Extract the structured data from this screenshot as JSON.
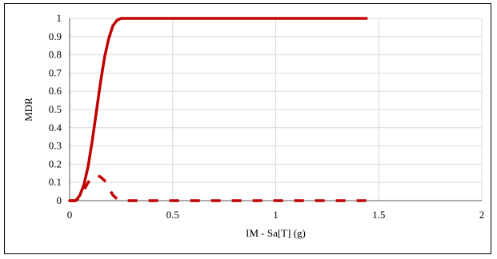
{
  "chart_data": {
    "type": "line",
    "title": "",
    "xlabel": "IM - Sa[T] (g)",
    "ylabel": "MDR",
    "xlim": [
      0,
      2
    ],
    "ylim": [
      0,
      1
    ],
    "xticks": [
      0,
      0.5,
      1,
      1.5,
      2
    ],
    "xtick_labels": [
      "0",
      "0.5",
      "1",
      "1.5",
      "2"
    ],
    "yticks": [
      0,
      0.1,
      0.2,
      0.3,
      0.4,
      0.5,
      0.6,
      0.7,
      0.8,
      0.9,
      1
    ],
    "ytick_labels": [
      "0",
      "0.1",
      "0.2",
      "0.3",
      "0.4",
      "0.5",
      "0.6",
      "0.7",
      "0.8",
      "0.9",
      "1"
    ],
    "grid": true,
    "legend": "none",
    "series": [
      {
        "style": "solid",
        "color": "#c00000",
        "x": [
          0,
          0.03,
          0.05,
          0.07,
          0.09,
          0.11,
          0.13,
          0.15,
          0.17,
          0.19,
          0.21,
          0.23,
          0.25,
          0.27,
          0.3,
          0.5,
          1.0,
          1.44
        ],
        "y": [
          0,
          0.0,
          0.03,
          0.09,
          0.19,
          0.33,
          0.49,
          0.65,
          0.79,
          0.89,
          0.96,
          0.99,
          1.0,
          1.0,
          1.0,
          1.0,
          1.0,
          1.0
        ]
      },
      {
        "style": "dashed",
        "color": "#c00000",
        "x": [
          0,
          0.03,
          0.05,
          0.07,
          0.09,
          0.11,
          0.13,
          0.15,
          0.17,
          0.19,
          0.21,
          0.23,
          0.25,
          0.3,
          0.5,
          1.0,
          1.44
        ],
        "y": [
          0,
          0.0,
          0.02,
          0.06,
          0.1,
          0.13,
          0.14,
          0.13,
          0.11,
          0.07,
          0.03,
          0.01,
          0.0,
          0.0,
          0.0,
          0.0,
          0.0
        ]
      }
    ]
  }
}
